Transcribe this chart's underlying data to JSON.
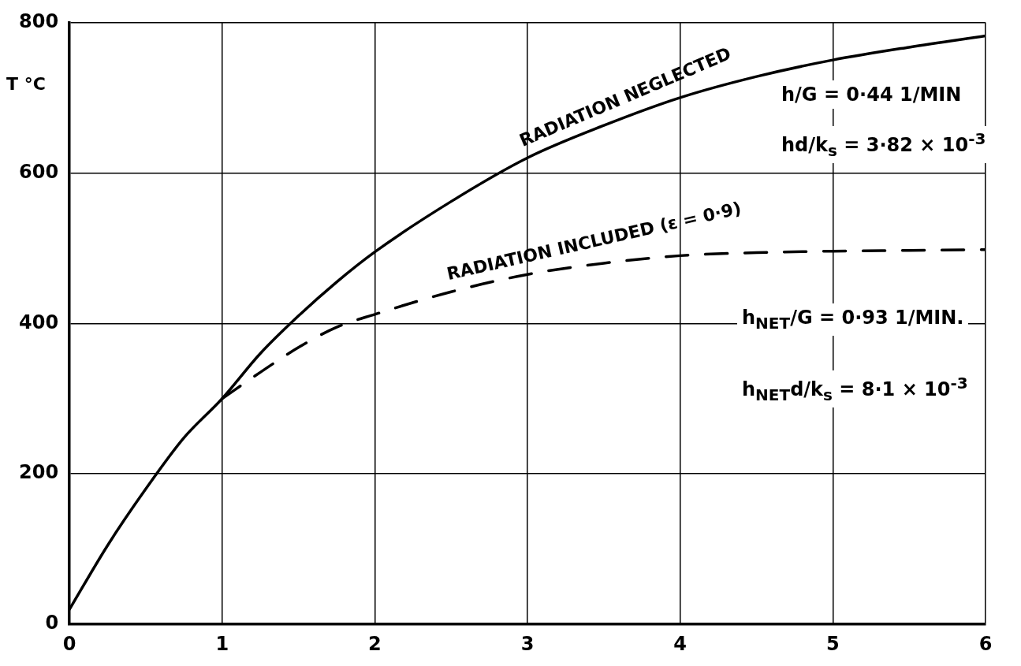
{
  "chart_data": {
    "type": "line",
    "ylabel": "T °C",
    "x": [
      0,
      0.25,
      0.5,
      0.75,
      1,
      1.25,
      1.5,
      1.75,
      2,
      2.5,
      3,
      3.5,
      4,
      4.5,
      5,
      5.5,
      6
    ],
    "series": [
      {
        "name": "RADIATION NEGLECTED",
        "color": "#000000",
        "line_style": "solid",
        "values": [
          20,
          105,
          180,
          248,
          300,
          360,
          410,
          455,
          495,
          562,
          620,
          663,
          700,
          728,
          750,
          767,
          782
        ]
      },
      {
        "name": "RADIATION INCLUDED (ε = 0·9)",
        "color": "#000000",
        "line_style": "dashed",
        "x": [
          1,
          1.25,
          1.5,
          1.75,
          2,
          2.5,
          3,
          3.5,
          4,
          4.5,
          5,
          5.5,
          6
        ],
        "values": [
          300,
          335,
          368,
          395,
          412,
          442,
          465,
          480,
          490,
          494,
          496,
          497,
          498
        ]
      }
    ],
    "annotations": [
      "h/G = 0·44 1/MIN",
      "hd/k$_{s}$ = 3·82 × 10$^{-3}$",
      "h$_{NET}$/G = 0·93 1/MIN.",
      "h$_{NET}$d/k$_{s}$ = 8·1 × 10$^{-3}$"
    ],
    "xlim": [
      0,
      6
    ],
    "xticks": [
      0,
      1,
      2,
      3,
      4,
      5,
      6
    ],
    "ylim": [
      0,
      800
    ],
    "yticks": [
      0,
      200,
      400,
      600,
      800
    ],
    "grid": true,
    "marker": "none",
    "legend": false
  }
}
